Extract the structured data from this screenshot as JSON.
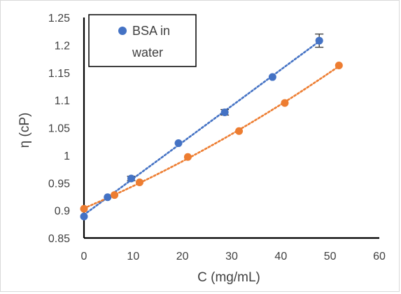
{
  "chart_data": {
    "type": "scatter",
    "title": "",
    "xlabel": "C (mg/mL)",
    "ylabel": "η (cP)",
    "xlim": [
      0,
      60
    ],
    "ylim": [
      0.85,
      1.25
    ],
    "x_ticks": [
      "0",
      "10",
      "20",
      "30",
      "40",
      "50",
      "60"
    ],
    "y_ticks": [
      "0.85",
      "0.9",
      "0.95",
      "1",
      "1.05",
      "1.1",
      "1.15",
      "1.2",
      "1.25"
    ],
    "grid": false,
    "legend": {
      "placement": "top-left",
      "entries": [
        "BSA in water"
      ]
    },
    "series": [
      {
        "name": "BSA in water",
        "color": "#4472C4",
        "marker": "circle",
        "trendline": "linear-dotted",
        "x": [
          0,
          4.8,
          9.6,
          19.2,
          28.6,
          38.3,
          47.8
        ],
        "y": [
          0.889,
          0.924,
          0.958,
          1.022,
          1.078,
          1.142,
          1.208
        ],
        "y_err": [
          0,
          0,
          0.004,
          0,
          0.005,
          0,
          0.012
        ]
      },
      {
        "color": "#ED7D31",
        "marker": "circle",
        "trendline": "polynomial-dotted",
        "x": [
          0,
          6.2,
          11.3,
          21.1,
          31.5,
          40.8,
          51.8
        ],
        "y": [
          0.903,
          0.928,
          0.951,
          0.997,
          1.044,
          1.095,
          1.163
        ],
        "y_err": [
          0,
          0,
          0,
          0,
          0,
          0,
          0
        ]
      }
    ]
  }
}
